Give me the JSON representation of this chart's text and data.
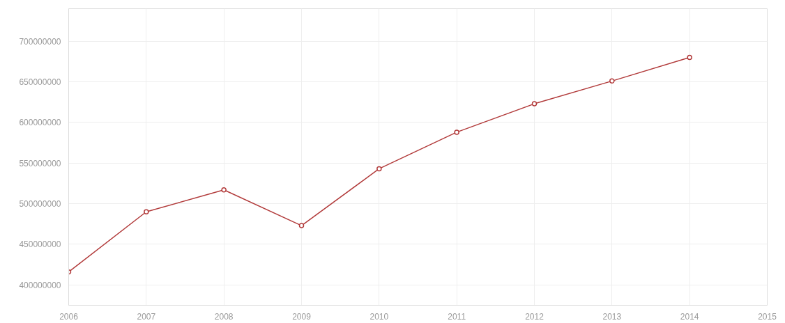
{
  "chart_data": {
    "type": "line",
    "x": [
      2006,
      2007,
      2008,
      2009,
      2010,
      2011,
      2012,
      2013,
      2014
    ],
    "series": [
      {
        "color": "#b23b3b",
        "values": [
          416000000,
          490000000,
          517000000,
          473000000,
          543000000,
          588000000,
          623000000,
          651000000,
          680000000
        ]
      }
    ],
    "xlim": [
      2006,
      2015
    ],
    "xticks": [
      2006,
      2007,
      2008,
      2009,
      2010,
      2011,
      2012,
      2013,
      2014,
      2015
    ],
    "ylim": [
      375000000,
      740000000
    ],
    "yticks": [
      400000000,
      450000000,
      500000000,
      550000000,
      600000000,
      650000000,
      700000000
    ],
    "grid": true,
    "marker": "circle",
    "line_style": "solid"
  }
}
